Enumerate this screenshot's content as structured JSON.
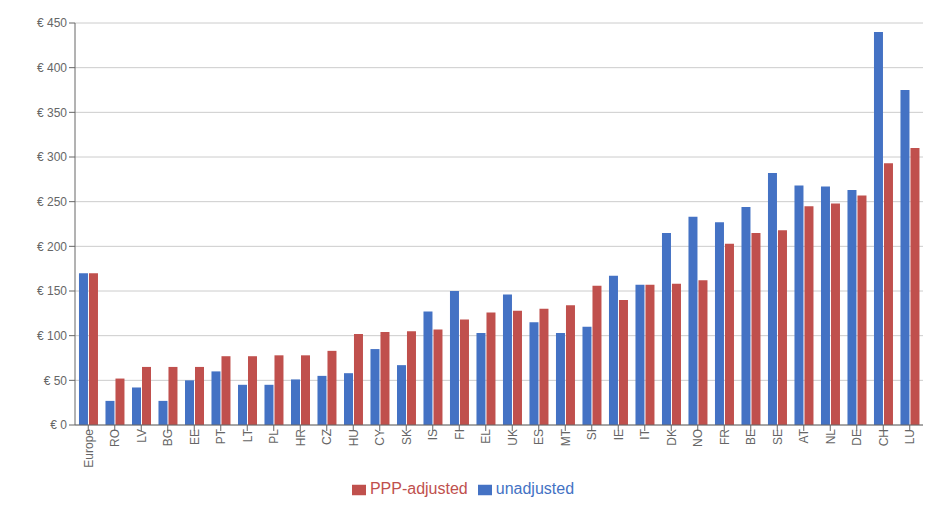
{
  "chart_data": {
    "type": "bar",
    "categories": [
      "Europe",
      "RO",
      "LV",
      "BG",
      "EE",
      "PT",
      "LT",
      "PL",
      "HR",
      "CZ",
      "HU",
      "CY",
      "SK",
      "IS",
      "FI",
      "EL",
      "UK",
      "ES",
      "MT",
      "SI",
      "IE",
      "IT",
      "DK",
      "NO",
      "FR",
      "BE",
      "SE",
      "AT",
      "NL",
      "DE",
      "CH",
      "LU"
    ],
    "series": [
      {
        "name": "unadjusted",
        "color": "#4472C4",
        "values": [
          170,
          27,
          42,
          27,
          50,
          60,
          45,
          45,
          51,
          55,
          58,
          85,
          67,
          127,
          150,
          103,
          146,
          115,
          103,
          110,
          167,
          157,
          215,
          233,
          227,
          244,
          282,
          268,
          267,
          263,
          440,
          375
        ]
      },
      {
        "name": "PPP-adjusted",
        "color": "#C0504D",
        "values": [
          170,
          52,
          65,
          65,
          65,
          77,
          77,
          78,
          78,
          83,
          102,
          104,
          105,
          107,
          118,
          126,
          128,
          130,
          134,
          156,
          140,
          157,
          158,
          162,
          203,
          215,
          218,
          245,
          248,
          257,
          293,
          310
        ]
      }
    ],
    "ylim": [
      0,
      450
    ],
    "yticks": [
      {
        "value": 0,
        "label": "€ 0"
      },
      {
        "value": 50,
        "label": "€ 50"
      },
      {
        "value": 100,
        "label": "€ 100"
      },
      {
        "value": 150,
        "label": "€ 150"
      },
      {
        "value": 200,
        "label": "€ 200"
      },
      {
        "value": 250,
        "label": "€ 250"
      },
      {
        "value": 300,
        "label": "€ 300"
      },
      {
        "value": 350,
        "label": "€ 350"
      },
      {
        "value": 400,
        "label": "€ 400"
      },
      {
        "value": 450,
        "label": "€ 450"
      }
    ],
    "grid": true,
    "legend": "bottom"
  }
}
